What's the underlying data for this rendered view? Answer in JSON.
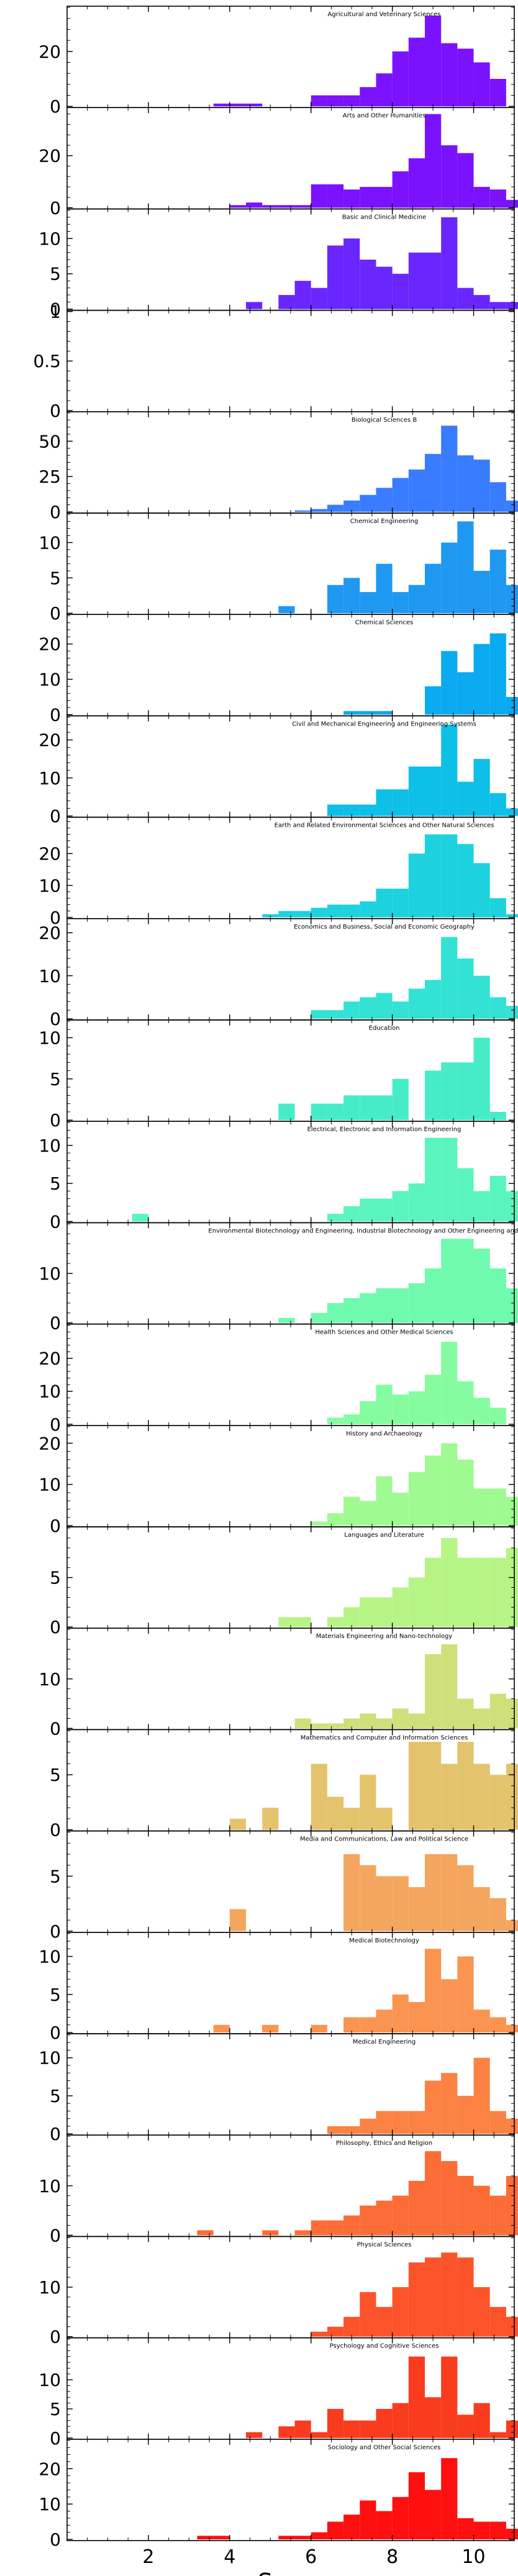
{
  "chart_data": {
    "type": "bar",
    "xlabel": "Score",
    "xlim": [
      0,
      11
    ],
    "xticks": [
      2,
      4,
      6,
      8,
      10
    ],
    "bin_width": 0.4,
    "bin_start": 0.4,
    "panels": [
      {
        "title": "Agricultural and Veterinary Sciences",
        "color": "#7a12ff",
        "ylim": [
          0,
          36
        ],
        "yticks": [
          0,
          20
        ],
        "counts": [
          0,
          0,
          0,
          0,
          0,
          0,
          0,
          0,
          1,
          1,
          1,
          0,
          0,
          0,
          4,
          4,
          4,
          7,
          12,
          20,
          25,
          33,
          23,
          21,
          16,
          10,
          0,
          0,
          1,
          0
        ]
      },
      {
        "title": "Arts and Other Humanities",
        "color": "#7a12ff",
        "ylim": [
          0,
          38
        ],
        "yticks": [
          0,
          20
        ],
        "counts": [
          0,
          0,
          0,
          0,
          0,
          0,
          0,
          0,
          0,
          1,
          2,
          1,
          1,
          1,
          9,
          9,
          7,
          8,
          8,
          14,
          19,
          36,
          24,
          21,
          8,
          7,
          3,
          2,
          2,
          0
        ]
      },
      {
        "title": "Basic and Clinical Medicine",
        "color": "#6a26ff",
        "ylim": [
          0,
          14
        ],
        "yticks": [
          0,
          5,
          10
        ],
        "counts": [
          0,
          0,
          0,
          0,
          0,
          0,
          0,
          0,
          0,
          0,
          1,
          0,
          2,
          4,
          3,
          9,
          10,
          7,
          6,
          5,
          8,
          8,
          13,
          3,
          2,
          1,
          1,
          1,
          0,
          2
        ]
      },
      {
        "title": "",
        "color": "#5a3cff",
        "ylim": [
          0,
          1
        ],
        "yticks": [
          0,
          0.5,
          1.0
        ],
        "counts": []
      },
      {
        "title": "Biological Sciences B",
        "color": "#3a7cff",
        "ylim": [
          0,
          70
        ],
        "yticks": [
          0,
          25,
          50
        ],
        "counts": [
          0,
          0,
          0,
          0,
          0,
          0,
          0,
          0,
          0,
          0,
          0,
          0,
          0,
          1,
          2,
          5,
          8,
          12,
          17,
          24,
          30,
          41,
          61,
          40,
          37,
          21,
          8,
          2,
          2,
          0
        ]
      },
      {
        "title": "Chemical Engineering",
        "color": "#1f98f2",
        "ylim": [
          0,
          14
        ],
        "yticks": [
          0,
          5,
          10
        ],
        "counts": [
          0,
          0,
          0,
          0,
          0,
          0,
          0,
          0,
          0,
          0,
          0,
          0,
          1,
          0,
          0,
          4,
          5,
          3,
          7,
          3,
          4,
          7,
          10,
          13,
          6,
          9,
          4,
          0,
          0,
          0
        ]
      },
      {
        "title": "Chemical Sciences",
        "color": "#0aaaf0",
        "ylim": [
          0,
          28
        ],
        "yticks": [
          0,
          10,
          20
        ],
        "counts": [
          0,
          0,
          0,
          0,
          0,
          0,
          0,
          0,
          0,
          0,
          0,
          0,
          0,
          0,
          0,
          0,
          1,
          1,
          1,
          0,
          0,
          8,
          18,
          12,
          20,
          23,
          5,
          0,
          0,
          0
        ]
      },
      {
        "title": "Civil and Mechanical Engineering and Engineering Systems",
        "color": "#0ebfe8",
        "ylim": [
          0,
          26
        ],
        "yticks": [
          0,
          10,
          20
        ],
        "counts": [
          0,
          0,
          0,
          0,
          0,
          0,
          0,
          0,
          0,
          0,
          0,
          0,
          0,
          0,
          0,
          3,
          3,
          3,
          7,
          7,
          13,
          13,
          24,
          9,
          15,
          6,
          2,
          0,
          0,
          0
        ]
      },
      {
        "title": "Earth and Related Environmental Sciences and Other Natural Sciences",
        "color": "#1dd2de",
        "ylim": [
          0,
          31
        ],
        "yticks": [
          0,
          10,
          20
        ],
        "counts": [
          0,
          0,
          0,
          0,
          0,
          0,
          0,
          0,
          0,
          0,
          0,
          1,
          2,
          2,
          3,
          4,
          4,
          5,
          9,
          9,
          20,
          26,
          26,
          23,
          17,
          6,
          1,
          0,
          2,
          0
        ]
      },
      {
        "title": "Economics and Business, Social and Economic Geography",
        "color": "#32e2d4",
        "ylim": [
          0,
          23
        ],
        "yticks": [
          0,
          10,
          20
        ],
        "counts": [
          0,
          0,
          0,
          0,
          0,
          0,
          0,
          0,
          0,
          0,
          0,
          0,
          0,
          0,
          2,
          2,
          4,
          5,
          6,
          4,
          7,
          9,
          19,
          14,
          10,
          5,
          3,
          0,
          0,
          0
        ]
      },
      {
        "title": "Education",
        "color": "#46ecc8",
        "ylim": [
          0,
          12
        ],
        "yticks": [
          0,
          5,
          10
        ],
        "counts": [
          0,
          0,
          0,
          0,
          0,
          0,
          0,
          0,
          0,
          0,
          0,
          0,
          2,
          0,
          2,
          2,
          3,
          3,
          3,
          5,
          0,
          6,
          7,
          7,
          10,
          1,
          0,
          1,
          0,
          0
        ]
      },
      {
        "title": "Electrical, Electronic and Information Engineering",
        "color": "#5af5bc",
        "ylim": [
          0,
          13
        ],
        "yticks": [
          0,
          5,
          10
        ],
        "counts": [
          0,
          0,
          0,
          1,
          0,
          0,
          0,
          0,
          0,
          0,
          0,
          0,
          0,
          0,
          0,
          1,
          2,
          3,
          3,
          4,
          5,
          11,
          11,
          7,
          4,
          6,
          4,
          10,
          1,
          0
        ]
      },
      {
        "title": "Environmental Biotechnology and Engineering, Industrial Biotechnology and Other Engineering and Technologies",
        "color": "#6ffaae",
        "ylim": [
          0,
          20
        ],
        "yticks": [
          0,
          10
        ],
        "counts": [
          0,
          0,
          0,
          0,
          0,
          0,
          0,
          0,
          0,
          0,
          0,
          0,
          1,
          0,
          2,
          4,
          5,
          6,
          7,
          7,
          8,
          11,
          17,
          17,
          15,
          11,
          7,
          2,
          0,
          0
        ]
      },
      {
        "title": "Health Sciences and Other Medical Sciences",
        "color": "#86fca0",
        "ylim": [
          0,
          30
        ],
        "yticks": [
          0,
          10,
          20
        ],
        "counts": [
          0,
          0,
          0,
          0,
          0,
          0,
          0,
          0,
          0,
          0,
          0,
          0,
          0,
          0,
          0,
          2,
          3,
          7,
          12,
          9,
          10,
          15,
          25,
          13,
          8,
          5,
          0,
          0,
          0,
          0
        ]
      },
      {
        "title": "History and Archaeology",
        "color": "#9ffa92",
        "ylim": [
          0,
          24
        ],
        "yticks": [
          0,
          10,
          20
        ],
        "counts": [
          0,
          0,
          0,
          0,
          0,
          0,
          0,
          0,
          0,
          0,
          0,
          0,
          0,
          0,
          1,
          3,
          7,
          6,
          12,
          8,
          13,
          17,
          20,
          16,
          9,
          9,
          7,
          0,
          0,
          0
        ]
      },
      {
        "title": "Languages and Literature",
        "color": "#b7f486",
        "ylim": [
          0,
          10
        ],
        "yticks": [
          0,
          5
        ],
        "counts": [
          0,
          0,
          0,
          0,
          0,
          0,
          0,
          0,
          0,
          0,
          0,
          0,
          1,
          1,
          0,
          1,
          2,
          3,
          3,
          4,
          5,
          7,
          9,
          7,
          7,
          7,
          8,
          0,
          0,
          0
        ]
      },
      {
        "title": "Materials Engineering and Nano-technology",
        "color": "#cfe07a",
        "ylim": [
          0,
          20
        ],
        "yticks": [
          0,
          10
        ],
        "counts": [
          0,
          0,
          0,
          0,
          0,
          0,
          0,
          0,
          0,
          0,
          0,
          0,
          0,
          2,
          1,
          1,
          2,
          3,
          2,
          4,
          3,
          15,
          17,
          6,
          4,
          7,
          6,
          0,
          0,
          0
        ]
      },
      {
        "title": "Mathematics and Computer and Information Sciences",
        "color": "#e3c46c",
        "ylim": [
          0,
          9
        ],
        "yticks": [
          0,
          5
        ],
        "counts": [
          0,
          0,
          0,
          0,
          0,
          0,
          0,
          0,
          0,
          1,
          0,
          2,
          0,
          0,
          6,
          3,
          2,
          5,
          2,
          0,
          8,
          8,
          6,
          8,
          6,
          5,
          6,
          0,
          0,
          0
        ]
      },
      {
        "title": "Media and Communications, Law and Political Science",
        "color": "#f4a65e",
        "ylim": [
          0,
          9
        ],
        "yticks": [
          0,
          5
        ],
        "counts": [
          0,
          0,
          0,
          0,
          0,
          0,
          0,
          0,
          0,
          2,
          0,
          0,
          0,
          0,
          0,
          0,
          7,
          6,
          5,
          5,
          4,
          7,
          7,
          6,
          4,
          3,
          1,
          0,
          0,
          0
        ]
      },
      {
        "title": "Medical Biotechnology",
        "color": "#fa9450",
        "ylim": [
          0,
          13
        ],
        "yticks": [
          0,
          5,
          10
        ],
        "counts": [
          0,
          0,
          0,
          0,
          0,
          0,
          0,
          0,
          1,
          0,
          0,
          1,
          0,
          0,
          1,
          0,
          2,
          2,
          3,
          5,
          4,
          11,
          7,
          10,
          3,
          2,
          1,
          1,
          0,
          0
        ]
      },
      {
        "title": "Medical Engineering",
        "color": "#fc8244",
        "ylim": [
          0,
          13
        ],
        "yticks": [
          0,
          5,
          10
        ],
        "counts": [
          0,
          0,
          0,
          0,
          0,
          0,
          0,
          0,
          0,
          0,
          0,
          0,
          0,
          0,
          0,
          1,
          1,
          2,
          3,
          3,
          3,
          7,
          8,
          5,
          10,
          3,
          2,
          1,
          0,
          0
        ]
      },
      {
        "title": "Philosophy, Ethics and Religion",
        "color": "#fc6c36",
        "ylim": [
          0,
          20
        ],
        "yticks": [
          0,
          10
        ],
        "counts": [
          0,
          0,
          0,
          0,
          0,
          0,
          0,
          1,
          0,
          0,
          0,
          1,
          0,
          1,
          3,
          3,
          4,
          6,
          7,
          8,
          11,
          17,
          15,
          12,
          10,
          8,
          12,
          1,
          1,
          0
        ]
      },
      {
        "title": "Physical Sciences",
        "color": "#fc532a",
        "ylim": [
          0,
          20
        ],
        "yticks": [
          0,
          10
        ],
        "counts": [
          0,
          0,
          0,
          0,
          0,
          0,
          0,
          0,
          0,
          0,
          0,
          0,
          0,
          0,
          1,
          2,
          4,
          9,
          6,
          10,
          15,
          16,
          17,
          16,
          10,
          6,
          4,
          0,
          0,
          0
        ]
      },
      {
        "title": "Psychology and Cognitive Sciences",
        "color": "#fa3c1e",
        "ylim": [
          0,
          17
        ],
        "yticks": [
          0,
          5,
          10
        ],
        "counts": [
          0,
          0,
          0,
          0,
          0,
          0,
          0,
          0,
          0,
          0,
          1,
          0,
          2,
          3,
          1,
          5,
          3,
          3,
          5,
          6,
          14,
          7,
          14,
          4,
          6,
          1,
          3,
          0,
          3,
          0
        ]
      },
      {
        "title": "Sociology and Other Social Sciences",
        "color": "#ff0f0f",
        "ylim": [
          0,
          28
        ],
        "yticks": [
          0,
          10,
          20
        ],
        "counts": [
          0,
          0,
          0,
          0,
          0,
          0,
          0,
          1,
          1,
          0,
          0,
          0,
          1,
          1,
          2,
          5,
          7,
          11,
          8,
          12,
          19,
          14,
          23,
          6,
          5,
          5,
          3,
          2,
          0,
          0
        ]
      }
    ]
  }
}
